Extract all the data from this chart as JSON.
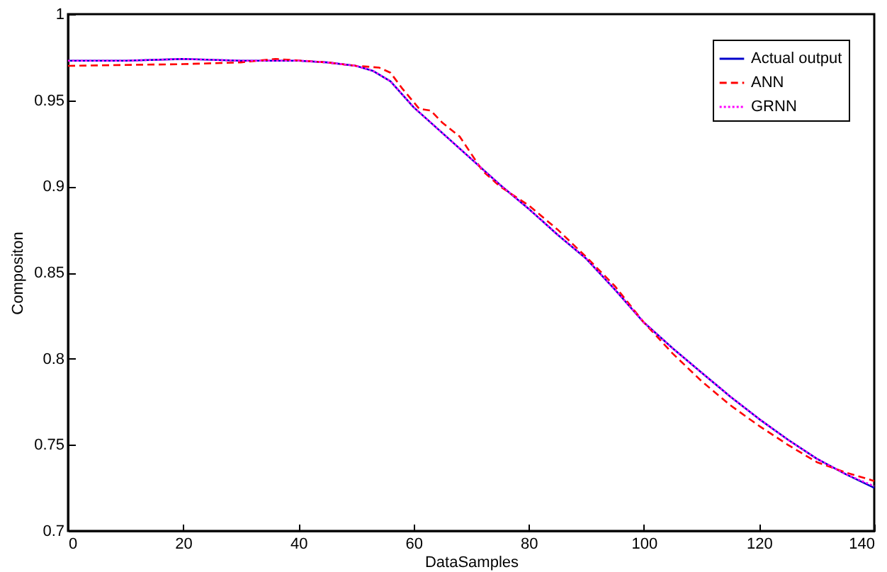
{
  "chart_data": {
    "type": "line",
    "xlabel": "DataSamples",
    "ylabel": "Compositon",
    "xlim": [
      0,
      140
    ],
    "ylim": [
      0.7,
      1
    ],
    "xticks": [
      0,
      20,
      40,
      60,
      80,
      100,
      120,
      140
    ],
    "yticks": [
      0.7,
      0.75,
      0.8,
      0.85,
      0.9,
      0.95,
      1
    ],
    "grid": false,
    "legend": "top right",
    "marker": "none",
    "series": [
      {
        "name": "Actual output",
        "color": "#0000cc",
        "line_style": "solid",
        "x": [
          0,
          10,
          20,
          30,
          40,
          45,
          50,
          53,
          56,
          60,
          65,
          70,
          75,
          80,
          85,
          90,
          95,
          100,
          105,
          110,
          115,
          120,
          125,
          130,
          135,
          140
        ],
        "values": [
          0.973,
          0.973,
          0.974,
          0.973,
          0.973,
          0.972,
          0.97,
          0.967,
          0.961,
          0.946,
          0.931,
          0.916,
          0.901,
          0.887,
          0.872,
          0.858,
          0.84,
          0.821,
          0.806,
          0.792,
          0.778,
          0.765,
          0.753,
          0.742,
          0.733,
          0.725
        ]
      },
      {
        "name": "ANN",
        "color": "#ff0000",
        "line_style": "dashed",
        "x": [
          0,
          20,
          30,
          36,
          45,
          50,
          54,
          56,
          58,
          60,
          61,
          63,
          65,
          68,
          70,
          72,
          75,
          80,
          85,
          90,
          95,
          100,
          105,
          110,
          115,
          120,
          125,
          130,
          135,
          140
        ],
        "values": [
          0.97,
          0.971,
          0.972,
          0.974,
          0.972,
          0.97,
          0.969,
          0.966,
          0.957,
          0.949,
          0.945,
          0.944,
          0.937,
          0.929,
          0.919,
          0.909,
          0.9,
          0.889,
          0.875,
          0.859,
          0.842,
          0.821,
          0.803,
          0.787,
          0.773,
          0.761,
          0.75,
          0.74,
          0.734,
          0.729
        ]
      },
      {
        "name": "GRNN",
        "color": "#ff00ff",
        "line_style": "dotted",
        "x": [
          0,
          10,
          20,
          30,
          40,
          45,
          50,
          53,
          56,
          60,
          65,
          70,
          75,
          80,
          85,
          90,
          95,
          100,
          105,
          110,
          115,
          120,
          125,
          130,
          135,
          140
        ],
        "values": [
          0.973,
          0.973,
          0.974,
          0.973,
          0.973,
          0.972,
          0.97,
          0.967,
          0.961,
          0.946,
          0.931,
          0.916,
          0.901,
          0.887,
          0.872,
          0.858,
          0.84,
          0.821,
          0.806,
          0.792,
          0.778,
          0.765,
          0.753,
          0.742,
          0.733,
          0.726
        ]
      }
    ]
  }
}
